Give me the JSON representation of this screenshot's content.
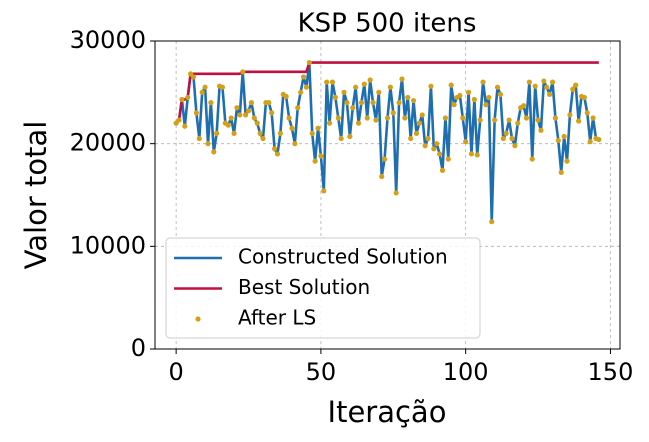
{
  "chart_data": {
    "type": "line",
    "title": "KSP 500 itens",
    "xlabel": "Iteração",
    "ylabel": "Valor total",
    "x": [
      0,
      1,
      2,
      3,
      4,
      5,
      6,
      7,
      8,
      9,
      10,
      11,
      12,
      13,
      14,
      15,
      16,
      17,
      18,
      19,
      20,
      21,
      22,
      23,
      24,
      25,
      26,
      27,
      28,
      29,
      30,
      31,
      32,
      33,
      34,
      35,
      36,
      37,
      38,
      39,
      40,
      41,
      42,
      43,
      44,
      45,
      46,
      47,
      48,
      49,
      50,
      51,
      52,
      53,
      54,
      55,
      56,
      57,
      58,
      59,
      60,
      61,
      62,
      63,
      64,
      65,
      66,
      67,
      68,
      69,
      70,
      71,
      72,
      73,
      74,
      75,
      76,
      77,
      78,
      79,
      80,
      81,
      82,
      83,
      84,
      85,
      86,
      87,
      88,
      89,
      90,
      91,
      92,
      93,
      94,
      95,
      96,
      97,
      98,
      99,
      100,
      101,
      102,
      103,
      104,
      105,
      106,
      107,
      108,
      109,
      110,
      111,
      112,
      113,
      114,
      115,
      116,
      117,
      118,
      119,
      120,
      121,
      122,
      123,
      124,
      125,
      126,
      127,
      128,
      129,
      130,
      131,
      132,
      133,
      134,
      135,
      136,
      137,
      138,
      139,
      140,
      141,
      142,
      143,
      144,
      145,
      146
    ],
    "series": [
      {
        "name": "Constructed Solution",
        "color": "#1f6fb0",
        "style": "line",
        "values": [
          22000,
          22300,
          24300,
          21700,
          24500,
          26800,
          26500,
          23000,
          20500,
          25000,
          25500,
          20000,
          24000,
          19200,
          21000,
          25600,
          25500,
          22000,
          21800,
          22500,
          21000,
          23500,
          22800,
          27000,
          22800,
          23200,
          24000,
          22500,
          22000,
          21000,
          20500,
          24000,
          24000,
          23000,
          19500,
          19000,
          21000,
          24800,
          24600,
          22500,
          21500,
          20000,
          23500,
          25000,
          26500,
          25500,
          27900,
          21000,
          18300,
          21500,
          18800,
          15400,
          26000,
          22000,
          26000,
          24500,
          22500,
          20500,
          25000,
          24000,
          20700,
          23500,
          25500,
          22000,
          24000,
          25800,
          22500,
          26200,
          24000,
          22300,
          25000,
          16800,
          18500,
          22500,
          25500,
          23000,
          15200,
          24000,
          26300,
          22500,
          24500,
          20500,
          24200,
          21000,
          22000,
          22800,
          19800,
          20500,
          25600,
          19500,
          20000,
          19000,
          17400,
          22500,
          18500,
          25700,
          23800,
          24500,
          24700,
          22500,
          20200,
          25000,
          19000,
          24300,
          18900,
          22300,
          26000,
          23800,
          24500,
          12400,
          22300,
          25500,
          24800,
          20500,
          21000,
          22300,
          20500,
          19800,
          22000,
          23500,
          23700,
          22500,
          26000,
          18500,
          25600,
          22300,
          21300,
          26100,
          25500,
          24800,
          26000,
          22500,
          20300,
          17200,
          20700,
          18300,
          22800,
          25300,
          25700,
          22200,
          24600,
          24500,
          23000,
          20200,
          22500,
          20500,
          20400
        ]
      },
      {
        "name": "Best Solution",
        "color": "#c0103f",
        "style": "line",
        "values": [
          22000,
          22300,
          24300,
          24300,
          24500,
          26800,
          26800,
          26800,
          26800,
          26800,
          26800,
          26800,
          26800,
          26800,
          26800,
          26800,
          26800,
          26800,
          26800,
          26800,
          26800,
          26800,
          26800,
          27000,
          27000,
          27000,
          27000,
          27000,
          27000,
          27000,
          27000,
          27000,
          27000,
          27000,
          27000,
          27000,
          27000,
          27000,
          27000,
          27000,
          27000,
          27000,
          27000,
          27000,
          27000,
          27000,
          27900,
          27900,
          27900,
          27900,
          27900,
          27900,
          27900,
          27900,
          27900,
          27900,
          27900,
          27900,
          27900,
          27900,
          27900,
          27900,
          27900,
          27900,
          27900,
          27900,
          27900,
          27900,
          27900,
          27900,
          27900,
          27900,
          27900,
          27900,
          27900,
          27900,
          27900,
          27900,
          27900,
          27900,
          27900,
          27900,
          27900,
          27900,
          27900,
          27900,
          27900,
          27900,
          27900,
          27900,
          27900,
          27900,
          27900,
          27900,
          27900,
          27900,
          27900,
          27900,
          27900,
          27900,
          27900,
          27900,
          27900,
          27900,
          27900,
          27900,
          27900,
          27900,
          27900,
          27900,
          27900,
          27900,
          27900,
          27900,
          27900,
          27900,
          27900,
          27900,
          27900,
          27900,
          27900,
          27900,
          27900,
          27900,
          27900,
          27900,
          27900,
          27900,
          27900,
          27900,
          27900,
          27900,
          27900,
          27900,
          27900,
          27900,
          27900,
          27900,
          27900,
          27900,
          27900,
          27900,
          27900,
          27900,
          27900,
          27900,
          27900
        ]
      },
      {
        "name": "After LS",
        "color": "#d4a017",
        "style": "dots",
        "values": [
          22000,
          22300,
          24300,
          21700,
          24500,
          26800,
          26500,
          23000,
          20500,
          25000,
          25500,
          20000,
          24000,
          19200,
          21000,
          25600,
          25500,
          22000,
          21800,
          22500,
          21000,
          23500,
          22800,
          27000,
          22800,
          23200,
          24000,
          22500,
          22000,
          21000,
          20500,
          24000,
          24000,
          23000,
          19500,
          19000,
          21000,
          24800,
          24600,
          22500,
          21500,
          20000,
          23500,
          25000,
          26500,
          25500,
          27900,
          21000,
          18300,
          21500,
          18800,
          15400,
          26000,
          22000,
          26000,
          24500,
          22500,
          20500,
          25000,
          24000,
          20700,
          23500,
          25500,
          22000,
          24000,
          25800,
          22500,
          26200,
          24000,
          22300,
          25000,
          16800,
          18500,
          22500,
          25500,
          23000,
          15200,
          24000,
          26300,
          22500,
          24500,
          20500,
          24200,
          21000,
          22000,
          22800,
          19800,
          20500,
          25600,
          19500,
          20000,
          19000,
          17400,
          22500,
          18500,
          25700,
          23800,
          24500,
          24700,
          22500,
          20200,
          25000,
          19000,
          24300,
          18900,
          22300,
          26000,
          23800,
          24500,
          12400,
          22300,
          25500,
          24800,
          20500,
          21000,
          22300,
          20500,
          19800,
          22000,
          23500,
          23700,
          22500,
          26000,
          18500,
          25600,
          22300,
          21300,
          26100,
          25500,
          24800,
          26000,
          22500,
          20300,
          17200,
          20700,
          18300,
          22800,
          25300,
          25700,
          22200,
          24600,
          24500,
          23000,
          20200,
          22500,
          20500,
          20400
        ]
      }
    ],
    "xlim": [
      -7.3,
      153.3
    ],
    "ylim": [
      0,
      30000
    ],
    "xticks": [
      0,
      50,
      100,
      150
    ],
    "yticks": [
      0,
      10000,
      20000,
      30000
    ],
    "grid": true,
    "legend": "lower left"
  }
}
